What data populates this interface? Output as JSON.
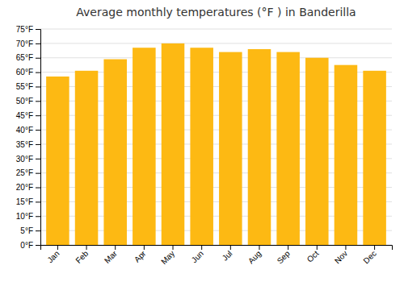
{
  "chart_data": {
    "type": "bar",
    "title": "Average monthly temperatures (°F ) in Banderilla",
    "categories": [
      "Jan",
      "Feb",
      "Mar",
      "Apr",
      "May",
      "Jun",
      "Jul",
      "Aug",
      "Sep",
      "Oct",
      "Nov",
      "Dec"
    ],
    "values": [
      58.5,
      60.5,
      64.5,
      68.5,
      70.0,
      68.5,
      67.0,
      68.0,
      67.0,
      65.0,
      62.5,
      60.5
    ],
    "color": "#FDB913",
    "ylim": [
      0,
      75
    ],
    "yticks": [
      {
        "value": 0,
        "label": "0°F"
      },
      {
        "value": 5,
        "label": "5°F"
      },
      {
        "value": 10,
        "label": "10°F"
      },
      {
        "value": 15,
        "label": "15°F"
      },
      {
        "value": 20,
        "label": "20°F"
      },
      {
        "value": 25,
        "label": "25°F"
      },
      {
        "value": 30,
        "label": "30°F"
      },
      {
        "value": 35,
        "label": "35°F"
      },
      {
        "value": 40,
        "label": "40°F"
      },
      {
        "value": 45,
        "label": "45°F"
      },
      {
        "value": 50,
        "label": "50°F"
      },
      {
        "value": 55,
        "label": "55°F"
      },
      {
        "value": 60,
        "label": "60°F"
      },
      {
        "value": 65,
        "label": "65°F"
      },
      {
        "value": 70,
        "label": "70°F"
      },
      {
        "value": 75,
        "label": "75°F"
      }
    ],
    "grid": true
  }
}
